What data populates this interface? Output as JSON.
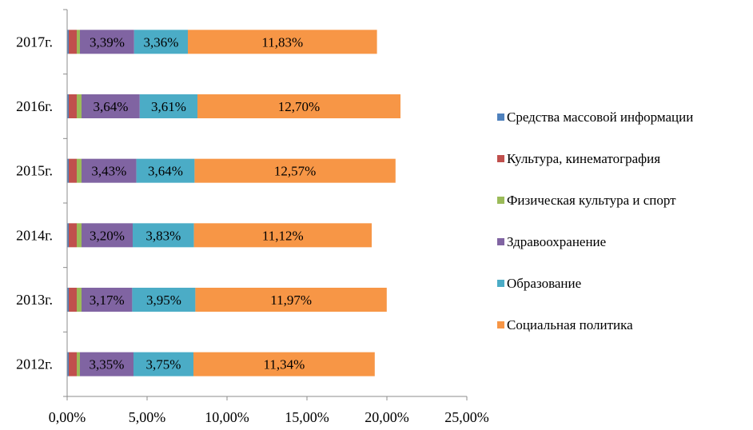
{
  "chart_data": {
    "type": "bar",
    "orientation": "horizontal",
    "stacked": true,
    "categories": [
      "2012г.",
      "2013г.",
      "2014г.",
      "2015г.",
      "2016г.",
      "2017г."
    ],
    "series": [
      {
        "name": "Средства массовой информации",
        "color": "#4F81BD",
        "values": [
          0.1,
          0.1,
          0.1,
          0.1,
          0.1,
          0.1
        ]
      },
      {
        "name": "Культура, кинематография",
        "color": "#C0504D",
        "values": [
          0.5,
          0.5,
          0.5,
          0.5,
          0.5,
          0.5
        ]
      },
      {
        "name": "Физическая культура и спорт",
        "color": "#9BBB59",
        "values": [
          0.2,
          0.3,
          0.3,
          0.3,
          0.3,
          0.2
        ]
      },
      {
        "name": "Здравоохранение",
        "color": "#8064A2",
        "values": [
          3.35,
          3.17,
          3.2,
          3.43,
          3.64,
          3.39
        ],
        "labels": [
          "3,35%",
          "3,17%",
          "3,20%",
          "3,43%",
          "3,64%",
          "3,39%"
        ]
      },
      {
        "name": "Образование",
        "color": "#4BACC6",
        "values": [
          3.75,
          3.95,
          3.83,
          3.64,
          3.61,
          3.36
        ],
        "labels": [
          "3,75%",
          "3,95%",
          "3,83%",
          "3,64%",
          "3,61%",
          "3,36%"
        ]
      },
      {
        "name": "Социальная политика",
        "color": "#F79646",
        "values": [
          11.34,
          11.97,
          11.12,
          12.57,
          12.7,
          11.83
        ],
        "labels": [
          "11,34%",
          "11,97%",
          "11,12%",
          "12,57%",
          "12,70%",
          "11,83%"
        ]
      }
    ],
    "xlim": [
      0,
      25
    ],
    "xticks": [
      0,
      5,
      10,
      15,
      20,
      25
    ],
    "xtick_labels": [
      "0,00%",
      "5,00%",
      "10,00%",
      "15,00%",
      "20,00%",
      "25,00%"
    ],
    "title": "",
    "xlabel": "",
    "ylabel": "",
    "grid": false,
    "legend_position": "right"
  }
}
